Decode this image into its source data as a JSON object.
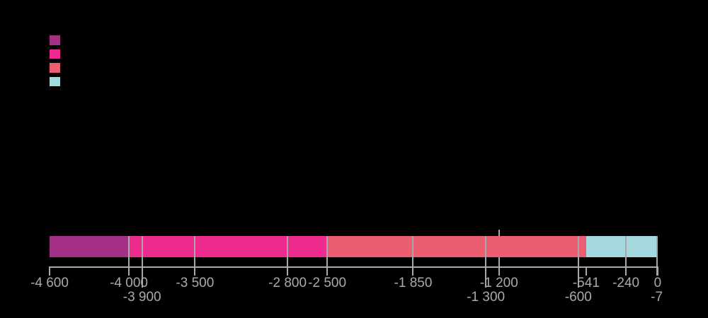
{
  "canvas": {
    "background": "#000000"
  },
  "legend": {
    "items": [
      {
        "name": "legend-swatch-1",
        "color": "#A33085",
        "label": ""
      },
      {
        "name": "legend-swatch-2",
        "color": "#ED2B8E",
        "label": ""
      },
      {
        "name": "legend-swatch-3",
        "color": "#EB5E71",
        "label": ""
      },
      {
        "name": "legend-swatch-4",
        "color": "#A4DADF",
        "label": ""
      }
    ]
  },
  "chart_data": {
    "type": "bar",
    "subtype": "proportional-horizontal-timeline",
    "title": "",
    "xlabel": "",
    "ylabel": "",
    "x_range": [
      -4600,
      0
    ],
    "grid": "boundary-gridlines-over-bar",
    "axis_color": "#A8A8A8",
    "label_color": "#AAAAAA",
    "segments": [
      {
        "name": "segment-1",
        "start": -4600,
        "end": -4000,
        "color": "#A33085"
      },
      {
        "name": "segment-2",
        "start": -4000,
        "end": -2500,
        "color": "#ED2B8E"
      },
      {
        "name": "segment-3",
        "start": -2500,
        "end": -541,
        "color": "#EB5E71"
      },
      {
        "name": "segment-4",
        "start": -541,
        "end": 0,
        "color": "#A4DADF"
      }
    ],
    "ticks": [
      {
        "value": -4600,
        "label": "-4 600",
        "row": 1,
        "line": "tick"
      },
      {
        "value": -4000,
        "label": "-4 000",
        "row": 1,
        "line": "grid"
      },
      {
        "value": -3900,
        "label": "-3 900",
        "row": 2,
        "line": "grid-long"
      },
      {
        "value": -3500,
        "label": "-3 500",
        "row": 1,
        "line": "grid"
      },
      {
        "value": -2800,
        "label": "-2 800",
        "row": 1,
        "line": "grid"
      },
      {
        "value": -2500,
        "label": "-2 500",
        "row": 1,
        "line": "grid"
      },
      {
        "value": -1850,
        "label": "-1 850",
        "row": 1,
        "line": "grid"
      },
      {
        "value": -1300,
        "label": "-1 300",
        "row": 2,
        "line": "grid-long"
      },
      {
        "value": -1200,
        "label": "-1 200",
        "row": 1,
        "line": "behind"
      },
      {
        "value": -600,
        "label": "-600",
        "row": 2,
        "line": "grid-long"
      },
      {
        "value": -541,
        "label": "-541",
        "row": 1,
        "line": "tick"
      },
      {
        "value": -240,
        "label": "-240",
        "row": 1,
        "line": "grid"
      },
      {
        "value": -7,
        "label": "-7",
        "row": 2,
        "line": "grid"
      },
      {
        "value": 0,
        "label": "0",
        "row": 1,
        "line": "tick"
      }
    ]
  }
}
